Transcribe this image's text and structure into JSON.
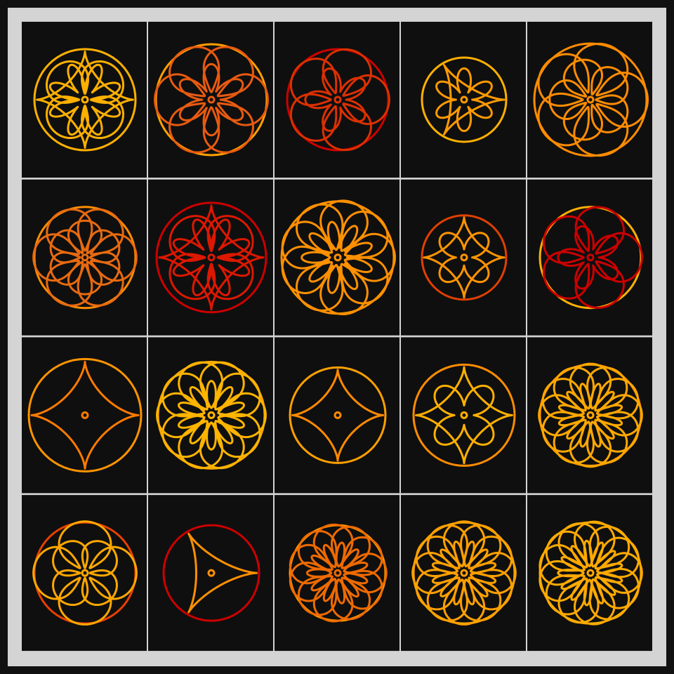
{
  "background": "#111111",
  "frame_color": "#d4d4d4",
  "cell_color": "#0f0f0f",
  "grid": {
    "rows": 4,
    "cols": 5
  },
  "tiles": [
    {
      "ring": "#ffb000",
      "curve": "#ffb000",
      "shape": "star4",
      "lobes": 8
    },
    {
      "ring": "#ffa000",
      "curve": "#e85a10",
      "shape": "rose",
      "lobes": 6
    },
    {
      "ring": "#cc0000",
      "curve": "#dd3000",
      "shape": "rose",
      "lobes": 5
    },
    {
      "ring": "#ffb000",
      "curve": "#ff9a00",
      "shape": "tri",
      "lobes": 6
    },
    {
      "ring": "#ff8c00",
      "curve": "#ff8c00",
      "shape": "web",
      "lobes": 5
    },
    {
      "ring": "#ff8c00",
      "curve": "#e86a10",
      "shape": "web",
      "lobes": 6
    },
    {
      "ring": "#cc0000",
      "curve": "#dd1800",
      "shape": "star4",
      "lobes": 8
    },
    {
      "ring": "#ff9000",
      "curve": "#ff9000",
      "shape": "rose",
      "lobes": 9
    },
    {
      "ring": "#e04000",
      "curve": "#ff9400",
      "shape": "star4",
      "lobes": 4
    },
    {
      "ring": "#ffb000",
      "curve": "#cc0000",
      "shape": "rose",
      "lobes": 5
    },
    {
      "ring": "#ff9400",
      "curve": "#ff7a00",
      "shape": "star4",
      "lobes": 0
    },
    {
      "ring": "#ffaa00",
      "curve": "#ffb400",
      "shape": "rose",
      "lobes": 10
    },
    {
      "ring": "#ffa000",
      "curve": "#ff8a00",
      "shape": "star4",
      "lobes": 0
    },
    {
      "ring": "#ff8c00",
      "curve": "#ffb000",
      "shape": "star4",
      "lobes": 4
    },
    {
      "ring": "#ff9400",
      "curve": "#ffa800",
      "shape": "rose",
      "lobes": 12
    },
    {
      "ring": "#e84000",
      "curve": "#ffa800",
      "shape": "web",
      "lobes": 4
    },
    {
      "ring": "#cc0000",
      "curve": "#ff9000",
      "shape": "tri",
      "lobes": 0
    },
    {
      "ring": "#ff9800",
      "curve": "#ee6a00",
      "shape": "rose",
      "lobes": 11
    },
    {
      "ring": "#ffa800",
      "curve": "#ffa000",
      "shape": "rose",
      "lobes": 12
    },
    {
      "ring": "#ffb000",
      "curve": "#ffaa00",
      "shape": "rose",
      "lobes": 13
    }
  ]
}
